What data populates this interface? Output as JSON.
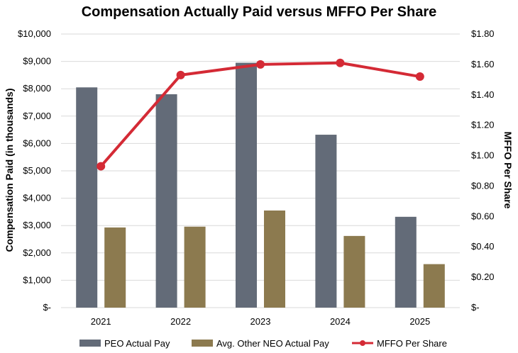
{
  "chart_data": {
    "type": "bar",
    "title": "Compensation Actually Paid versus MFFO Per Share",
    "categories": [
      "2021",
      "2022",
      "2023",
      "2024",
      "2025"
    ],
    "ylabel": "Compensation Paid (in thousands)",
    "y2label": "MFFO Per Share",
    "ylim": [
      0,
      10000
    ],
    "y2lim": [
      0,
      1.8
    ],
    "yticks": [
      "$-",
      "$1,000",
      "$2,000",
      "$3,000",
      "$4,000",
      "$5,000",
      "$6,000",
      "$7,000",
      "$8,000",
      "$9,000",
      "$10,000"
    ],
    "y2ticks": [
      "$-",
      "$0.20",
      "$0.40",
      "$0.60",
      "$0.80",
      "$1.00",
      "$1.20",
      "$1.40",
      "$1.60",
      "$1.80"
    ],
    "series": [
      {
        "name": "PEO Actual Pay",
        "type": "bar",
        "axis": "left",
        "color": "#636b78",
        "values": [
          8050,
          7800,
          8950,
          6320,
          3320
        ]
      },
      {
        "name": "Avg. Other NEO Actual Pay",
        "type": "bar",
        "axis": "left",
        "color": "#8c7a4f",
        "values": [
          2930,
          2960,
          3550,
          2620,
          1590
        ]
      },
      {
        "name": "MFFO Per Share",
        "type": "line",
        "axis": "right",
        "color": "#d42a35",
        "values": [
          0.93,
          1.53,
          1.6,
          1.61,
          1.52
        ]
      }
    ],
    "legend_position": "bottom",
    "grid": true
  }
}
